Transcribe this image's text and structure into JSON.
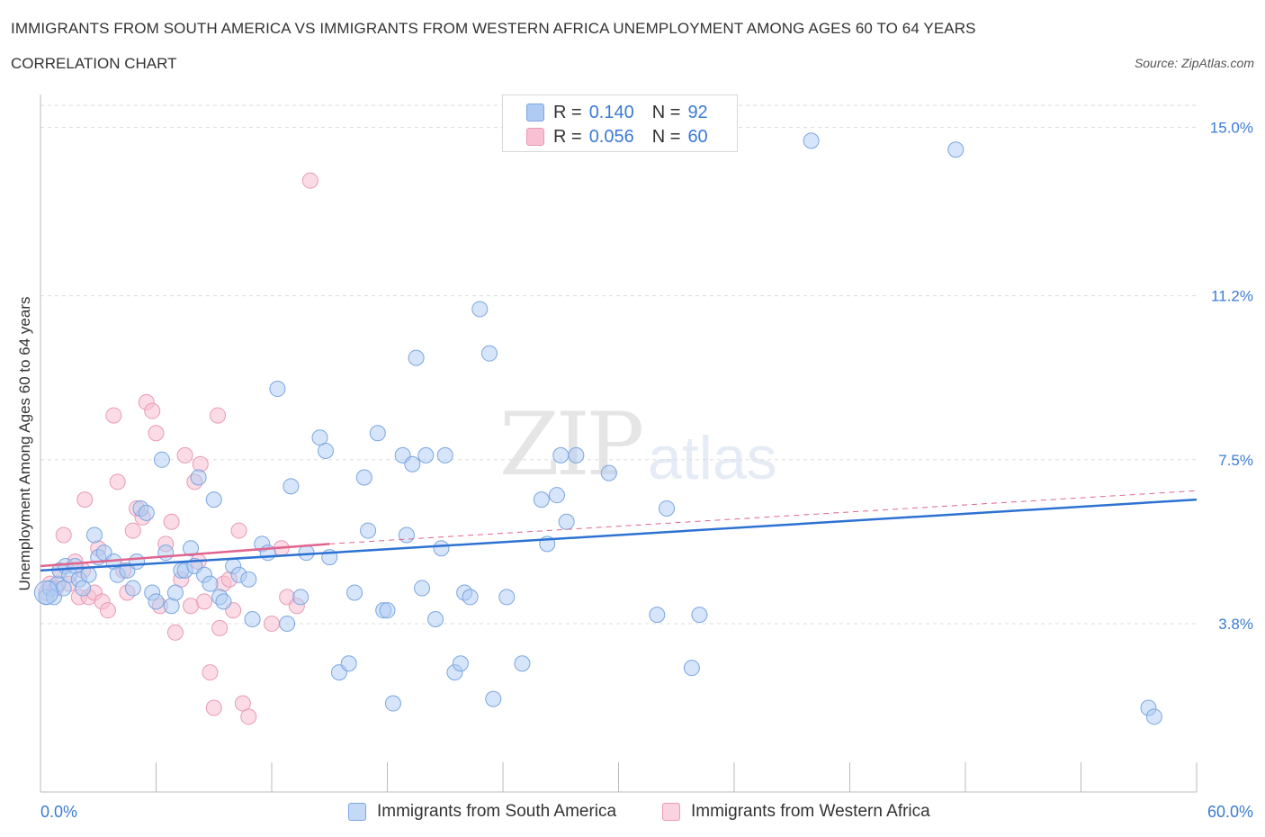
{
  "header": {
    "title": "IMMIGRANTS FROM SOUTH AMERICA VS IMMIGRANTS FROM WESTERN AFRICA UNEMPLOYMENT AMONG AGES 60 TO 64 YEARS",
    "subtitle": "CORRELATION CHART",
    "source": "Source: ZipAtlas.com"
  },
  "watermark": {
    "main": "ZIP",
    "sub": "atlas"
  },
  "legend_top": {
    "rows": [
      {
        "r_label": "R =",
        "r_value": "0.140",
        "n_label": "N =",
        "n_value": "92"
      },
      {
        "r_label": "R =",
        "r_value": "0.056",
        "n_label": "N =",
        "n_value": "60"
      }
    ]
  },
  "legend_bottom": [
    {
      "label": "Immigrants from South America"
    },
    {
      "label": "Immigrants from Western Africa"
    }
  ],
  "colors": {
    "blue_fill": "#aecbf3",
    "blue_stroke": "#7aa6e0",
    "blue_line": "#2d72d2",
    "pink_fill": "#f8c0d2",
    "pink_stroke": "#e99ab5",
    "pink_line": "#e0648f",
    "axis_text": "#3a7bd5",
    "grid": "#dddddd"
  },
  "chart_data": {
    "type": "scatter",
    "title": "IMMIGRANTS FROM SOUTH AMERICA VS IMMIGRANTS FROM WESTERN AFRICA UNEMPLOYMENT AMONG AGES 60 TO 64 YEARS",
    "xlabel": "",
    "ylabel": "Unemployment Among Ages 60 to 64 years",
    "xlim": [
      0,
      60
    ],
    "ylim": [
      0,
      15.5
    ],
    "x_tick_labels": [
      "0.0%",
      "60.0%"
    ],
    "y_ticks": [
      3.8,
      7.5,
      11.2,
      15.0
    ],
    "y_tick_labels": [
      "3.8%",
      "7.5%",
      "11.2%",
      "15.0%"
    ],
    "grid": true,
    "legend_position": "top-center",
    "series": [
      {
        "name": "Immigrants from South America",
        "r": 0.14,
        "n": 92,
        "trend": {
          "x": [
            0,
            60
          ],
          "y": [
            5.0,
            6.6
          ]
        },
        "points": [
          [
            0.3,
            4.4
          ],
          [
            0.5,
            4.6
          ],
          [
            0.7,
            4.4
          ],
          [
            0.9,
            4.7
          ],
          [
            1.0,
            5.0
          ],
          [
            1.2,
            4.6
          ],
          [
            1.3,
            5.1
          ],
          [
            1.5,
            4.9
          ],
          [
            1.8,
            5.1
          ],
          [
            2.0,
            4.8
          ],
          [
            2.2,
            4.6
          ],
          [
            2.5,
            4.9
          ],
          [
            2.8,
            5.8
          ],
          [
            3.0,
            5.3
          ],
          [
            3.3,
            5.4
          ],
          [
            3.8,
            5.2
          ],
          [
            4.0,
            4.9
          ],
          [
            4.5,
            5.0
          ],
          [
            4.8,
            4.6
          ],
          [
            5.0,
            5.2
          ],
          [
            5.2,
            6.4
          ],
          [
            5.5,
            6.3
          ],
          [
            5.8,
            4.5
          ],
          [
            6.0,
            4.3
          ],
          [
            6.3,
            7.5
          ],
          [
            6.5,
            5.4
          ],
          [
            6.8,
            4.2
          ],
          [
            7.0,
            4.5
          ],
          [
            7.3,
            5.0
          ],
          [
            7.5,
            5.0
          ],
          [
            7.8,
            5.5
          ],
          [
            8.0,
            5.1
          ],
          [
            8.2,
            7.1
          ],
          [
            8.5,
            4.9
          ],
          [
            8.8,
            4.7
          ],
          [
            9.0,
            6.6
          ],
          [
            9.3,
            4.4
          ],
          [
            9.5,
            4.3
          ],
          [
            10.0,
            5.1
          ],
          [
            10.3,
            4.9
          ],
          [
            10.8,
            4.8
          ],
          [
            11.0,
            3.9
          ],
          [
            11.5,
            5.6
          ],
          [
            11.8,
            5.4
          ],
          [
            12.3,
            9.1
          ],
          [
            12.8,
            3.8
          ],
          [
            13.0,
            6.9
          ],
          [
            13.5,
            4.4
          ],
          [
            13.8,
            5.4
          ],
          [
            14.5,
            8.0
          ],
          [
            14.8,
            7.7
          ],
          [
            15.0,
            5.3
          ],
          [
            15.5,
            2.7
          ],
          [
            16.0,
            2.9
          ],
          [
            16.3,
            4.5
          ],
          [
            16.8,
            7.1
          ],
          [
            17.0,
            5.9
          ],
          [
            17.5,
            8.1
          ],
          [
            17.8,
            4.1
          ],
          [
            18.0,
            4.1
          ],
          [
            18.3,
            2.0
          ],
          [
            18.8,
            7.6
          ],
          [
            19.0,
            5.8
          ],
          [
            19.3,
            7.4
          ],
          [
            19.5,
            9.8
          ],
          [
            19.8,
            4.6
          ],
          [
            20.0,
            7.6
          ],
          [
            20.5,
            3.9
          ],
          [
            20.8,
            5.5
          ],
          [
            21.0,
            7.6
          ],
          [
            21.5,
            2.7
          ],
          [
            21.8,
            2.9
          ],
          [
            22.0,
            4.5
          ],
          [
            22.3,
            4.4
          ],
          [
            22.8,
            10.9
          ],
          [
            23.3,
            9.9
          ],
          [
            23.5,
            2.1
          ],
          [
            24.2,
            4.4
          ],
          [
            25.0,
            2.9
          ],
          [
            26.0,
            6.6
          ],
          [
            26.3,
            5.6
          ],
          [
            26.8,
            6.7
          ],
          [
            27.0,
            7.6
          ],
          [
            27.3,
            6.1
          ],
          [
            27.8,
            7.6
          ],
          [
            29.5,
            7.2
          ],
          [
            32.0,
            4.0
          ],
          [
            32.5,
            6.4
          ],
          [
            33.8,
            2.8
          ],
          [
            34.2,
            4.0
          ],
          [
            40.0,
            14.7
          ],
          [
            47.5,
            14.5
          ],
          [
            57.5,
            1.9
          ],
          [
            57.8,
            1.7
          ]
        ]
      },
      {
        "name": "Immigrants from Western Africa",
        "r": 0.056,
        "n": 60,
        "trend": {
          "x": [
            0,
            15
          ],
          "y": [
            5.1,
            5.6
          ]
        },
        "dashed_extension": {
          "x": [
            15,
            60
          ],
          "y": [
            5.6,
            6.8
          ]
        },
        "points": [
          [
            0.3,
            4.5
          ],
          [
            0.5,
            4.7
          ],
          [
            0.8,
            4.6
          ],
          [
            1.0,
            5.0
          ],
          [
            1.2,
            5.8
          ],
          [
            1.5,
            4.7
          ],
          [
            1.8,
            5.2
          ],
          [
            2.0,
            4.4
          ],
          [
            2.2,
            5.0
          ],
          [
            2.3,
            6.6
          ],
          [
            2.5,
            4.4
          ],
          [
            2.8,
            4.5
          ],
          [
            3.0,
            5.5
          ],
          [
            3.2,
            4.3
          ],
          [
            3.5,
            4.1
          ],
          [
            3.8,
            8.5
          ],
          [
            4.0,
            7.0
          ],
          [
            4.3,
            5.0
          ],
          [
            4.5,
            4.5
          ],
          [
            4.8,
            5.9
          ],
          [
            5.0,
            6.4
          ],
          [
            5.3,
            6.2
          ],
          [
            5.5,
            8.8
          ],
          [
            5.8,
            8.6
          ],
          [
            6.0,
            8.1
          ],
          [
            6.2,
            4.2
          ],
          [
            6.5,
            5.6
          ],
          [
            6.8,
            6.1
          ],
          [
            7.0,
            3.6
          ],
          [
            7.3,
            4.8
          ],
          [
            7.5,
            7.6
          ],
          [
            7.8,
            4.2
          ],
          [
            8.0,
            7.0
          ],
          [
            8.2,
            5.2
          ],
          [
            8.3,
            7.4
          ],
          [
            8.5,
            4.3
          ],
          [
            8.8,
            2.7
          ],
          [
            9.0,
            1.9
          ],
          [
            9.2,
            8.5
          ],
          [
            9.3,
            3.7
          ],
          [
            9.5,
            4.7
          ],
          [
            9.8,
            4.8
          ],
          [
            10.0,
            4.1
          ],
          [
            10.3,
            5.9
          ],
          [
            10.5,
            2.0
          ],
          [
            10.8,
            1.7
          ],
          [
            12.0,
            3.8
          ],
          [
            12.5,
            5.5
          ],
          [
            12.8,
            4.4
          ],
          [
            13.3,
            4.2
          ],
          [
            14.0,
            13.8
          ]
        ]
      }
    ]
  }
}
